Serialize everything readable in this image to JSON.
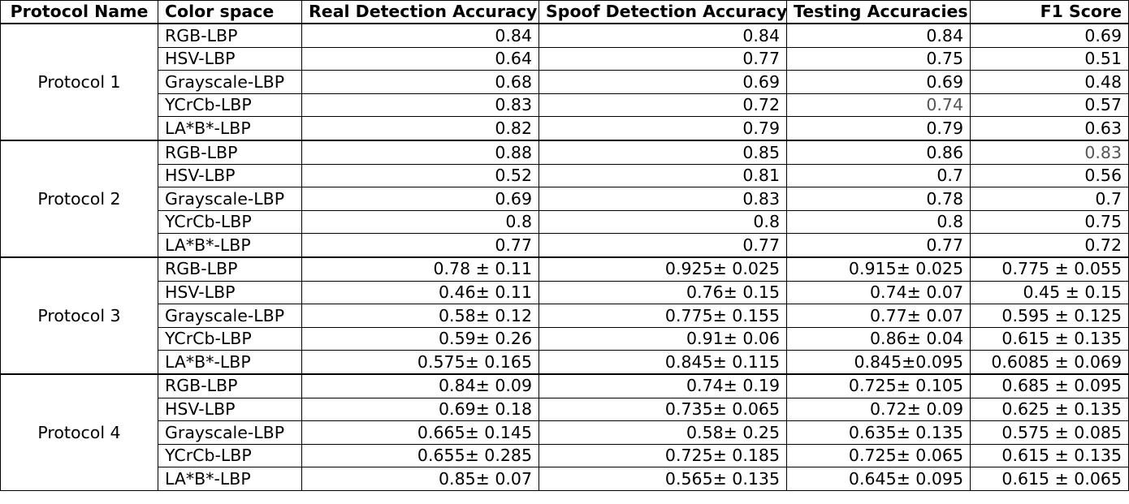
{
  "table": {
    "headers": [
      "Protocol Name",
      "Color space",
      "Real Detection Accuracy",
      "Spoof Detection Accuracy",
      "Testing Accuracies",
      "F1 Score"
    ],
    "groups": [
      {
        "protocol": "Protocol 1",
        "rows": [
          {
            "color_space": "RGB-LBP",
            "real": "0.84",
            "spoof": "0.84",
            "testing": "0.84",
            "f1": "0.69"
          },
          {
            "color_space": "HSV-LBP",
            "real": "0.64",
            "spoof": "0.77",
            "testing": "0.75",
            "f1": "0.51"
          },
          {
            "color_space": "Grayscale-LBP",
            "real": "0.68",
            "spoof": "0.69",
            "testing": "0.69",
            "f1": "0.48"
          },
          {
            "color_space": "YCrCb-LBP",
            "real": "0.83",
            "spoof": "0.72",
            "testing": "0.74",
            "f1": "0.57"
          },
          {
            "color_space": "LA*B*-LBP",
            "real": "0.82",
            "spoof": "0.79",
            "testing": "0.79",
            "f1": "0.63"
          }
        ]
      },
      {
        "protocol": "Protocol 2",
        "rows": [
          {
            "color_space": "RGB-LBP",
            "real": "0.88",
            "spoof": "0.85",
            "testing": "0.86",
            "f1": "0.83"
          },
          {
            "color_space": "HSV-LBP",
            "real": "0.52",
            "spoof": "0.81",
            "testing": "0.7",
            "f1": "0.56"
          },
          {
            "color_space": "Grayscale-LBP",
            "real": "0.69",
            "spoof": "0.83",
            "testing": "0.78",
            "f1": "0.7"
          },
          {
            "color_space": "YCrCb-LBP",
            "real": "0.8",
            "spoof": "0.8",
            "testing": "0.8",
            "f1": "0.75"
          },
          {
            "color_space": "LA*B*-LBP",
            "real": "0.77",
            "spoof": "0.77",
            "testing": "0.77",
            "f1": "0.72"
          }
        ]
      },
      {
        "protocol": "Protocol 3",
        "rows": [
          {
            "color_space": "RGB-LBP",
            "real": "0.78 ± 0.11",
            "spoof": "0.925± 0.025",
            "testing": "0.915± 0.025",
            "f1": "0.775 ± 0.055"
          },
          {
            "color_space": "HSV-LBP",
            "real": "0.46± 0.11",
            "spoof": "0.76± 0.15",
            "testing": "0.74± 0.07",
            "f1": "0.45 ± 0.15"
          },
          {
            "color_space": "Grayscale-LBP",
            "real": "0.58± 0.12",
            "spoof": "0.775± 0.155",
            "testing": "0.77± 0.07",
            "f1": "0.595 ± 0.125"
          },
          {
            "color_space": "YCrCb-LBP",
            "real": "0.59± 0.26",
            "spoof": "0.91± 0.06",
            "testing": "0.86± 0.04",
            "f1": "0.615 ± 0.135"
          },
          {
            "color_space": "LA*B*-LBP",
            "real": "0.575± 0.165",
            "spoof": "0.845± 0.115",
            "testing": "0.845±0.095",
            "f1": "0.6085 ± 0.069"
          }
        ]
      },
      {
        "protocol": "Protocol 4",
        "rows": [
          {
            "color_space": "RGB-LBP",
            "real": "0.84± 0.09",
            "spoof": "0.74± 0.19",
            "testing": "0.725± 0.105",
            "f1": "0.685 ± 0.095"
          },
          {
            "color_space": "HSV-LBP",
            "real": "0.69± 0.18",
            "spoof": "0.735± 0.065",
            "testing": "0.72± 0.09",
            "f1": "0.625 ± 0.135"
          },
          {
            "color_space": "Grayscale-LBP",
            "real": "0.665± 0.145",
            "spoof": "0.58± 0.25",
            "testing": "0.635± 0.135",
            "f1": "0.575 ± 0.085"
          },
          {
            "color_space": "YCrCb-LBP",
            "real": "0.655± 0.285",
            "spoof": "0.725± 0.185",
            "testing": "0.725± 0.065",
            "f1": "0.615 ± 0.135"
          },
          {
            "color_space": "LA*B*-LBP",
            "real": "0.85± 0.07",
            "spoof": "0.565± 0.135",
            "testing": "0.645± 0.095",
            "f1": "0.615 ± 0.065"
          }
        ]
      }
    ]
  },
  "colors": {
    "text": "#000000",
    "border": "#000000",
    "background": "#ffffff",
    "muted_text": "#555555"
  }
}
